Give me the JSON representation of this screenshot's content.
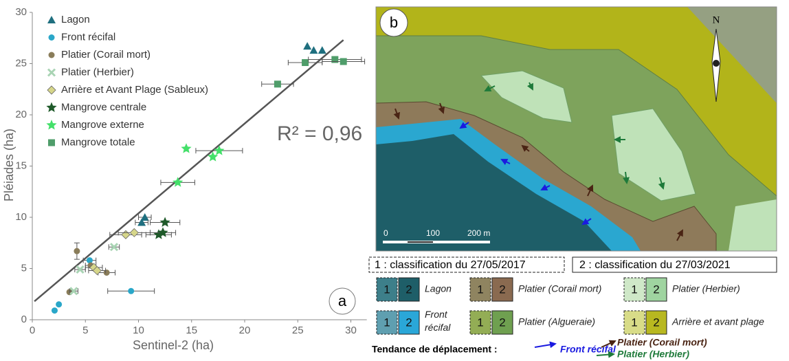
{
  "chart_data": {
    "type": "scatter",
    "xlabel": "Sentinel-2 (ha)",
    "ylabel": "Pléiades (ha)",
    "annotation": "R² = 0,96",
    "panel_label": "a",
    "xlim": [
      0,
      31.5
    ],
    "xticks": [
      0,
      5,
      10,
      15,
      20,
      25,
      30
    ],
    "ylim": [
      0,
      30
    ],
    "yticks": [
      0,
      5,
      10,
      15,
      20,
      25,
      30
    ],
    "trendline": {
      "x": [
        0.2,
        29.3
      ],
      "values": [
        1.8,
        27.3
      ],
      "color": "#555555"
    },
    "series": [
      {
        "name": "Lagon",
        "color": "#1f6f7f",
        "marker": "triangle",
        "x": [
          25.9,
          26.5,
          27.3,
          10.6,
          10.3
        ],
        "values": [
          26.7,
          26.3,
          26.3,
          10.0,
          9.5
        ],
        "x_errors": [
          0,
          0,
          0,
          0.6,
          0.6
        ]
      },
      {
        "name": "Front récifal",
        "color": "#2aa7c9",
        "marker": "circle",
        "x": [
          2.1,
          2.5,
          5.4,
          9.3
        ],
        "values": [
          0.9,
          1.5,
          5.8,
          2.8
        ],
        "x_errors": [
          0,
          0,
          0.6,
          2.2
        ]
      },
      {
        "name": "Platier (Corail mort)",
        "color": "#8a7d5a",
        "marker": "circle",
        "x": [
          4.2,
          3.5,
          5.5,
          7.0
        ],
        "values": [
          6.7,
          2.7,
          5.3,
          4.6
        ],
        "x_errors": [
          0,
          0,
          0.5,
          0.8
        ],
        "y_errors": [
          0.8,
          0,
          0,
          0
        ]
      },
      {
        "name": "Platier (Herbier)",
        "color": "#a9d4b4",
        "marker": "x",
        "x": [
          3.9,
          7.7,
          4.5
        ],
        "values": [
          2.8,
          7.1,
          4.9
        ],
        "x_errors": [
          0.4,
          0.5,
          0.5
        ]
      },
      {
        "name": "Arrière et Avant Plage (Sableux)",
        "color": "#d6d68a",
        "marker": "diamond",
        "x": [
          8.8,
          9.6,
          5.8,
          6.1
        ],
        "values": [
          8.3,
          8.5,
          5.1,
          4.8
        ],
        "x_errors": [
          1.5,
          1.5,
          0.8,
          0.8
        ]
      },
      {
        "name": "Mangrove centrale",
        "color": "#1f5a2a",
        "marker": "star",
        "x": [
          12.5,
          11.9,
          12.3
        ],
        "values": [
          9.5,
          8.3,
          8.5
        ],
        "x_errors": [
          1.4,
          1.2,
          1.2
        ]
      },
      {
        "name": "Mangrove externe",
        "color": "#44e06a",
        "marker": "star",
        "x": [
          14.5,
          17.6,
          17.0,
          13.7
        ],
        "values": [
          16.7,
          16.5,
          15.9,
          13.4
        ],
        "x_errors": [
          0,
          2.2,
          0,
          1.6
        ]
      },
      {
        "name": "Mangrove totale",
        "color": "#4f9d6a",
        "marker": "square",
        "x": [
          23.1,
          25.7,
          28.5,
          29.3
        ],
        "values": [
          23.0,
          25.1,
          25.4,
          25.2
        ],
        "x_errors": [
          1.5,
          1.6,
          2.5,
          2.0
        ]
      }
    ]
  },
  "map": {
    "panel_label": "b",
    "north": "N",
    "scale": [
      "0",
      "100",
      "200 m"
    ],
    "codes": [
      "1",
      "2"
    ],
    "classifications": [
      "1 : classification du 27/05/2017",
      "2 : classification du 27/03/2021"
    ],
    "legend": [
      "Lagon",
      "Platier (Corail mort)",
      "Platier (Herbier)",
      "Front récifal",
      "Platier (Algueraie)",
      "Arrière et avant plage"
    ],
    "trend_title": "Tendance de déplacement :",
    "trends": [
      "Front récifal",
      "Platier (Corail mort)",
      "Platier (Herbier)"
    ]
  }
}
